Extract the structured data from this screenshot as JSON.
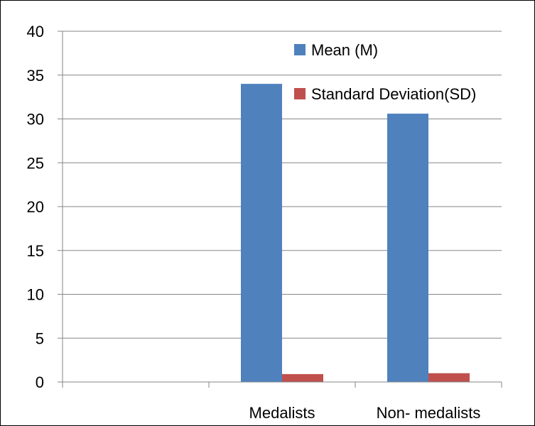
{
  "chart_data": {
    "type": "bar",
    "categories": [
      "",
      "Medalists",
      "Non- medalists"
    ],
    "series": [
      {
        "name": "Mean (M)",
        "values": [
          null,
          34.0,
          30.6
        ],
        "color": "#4F81BD"
      },
      {
        "name": "Standard Deviation(SD)",
        "values": [
          null,
          0.9,
          1.0
        ],
        "color": "#C0504D"
      }
    ],
    "ylim": [
      0,
      40
    ],
    "yticks": [
      0,
      5,
      10,
      15,
      20,
      25,
      30,
      35,
      40
    ],
    "grid": true,
    "legend_position": "top-right",
    "title": "",
    "xlabel": "",
    "ylabel": ""
  }
}
